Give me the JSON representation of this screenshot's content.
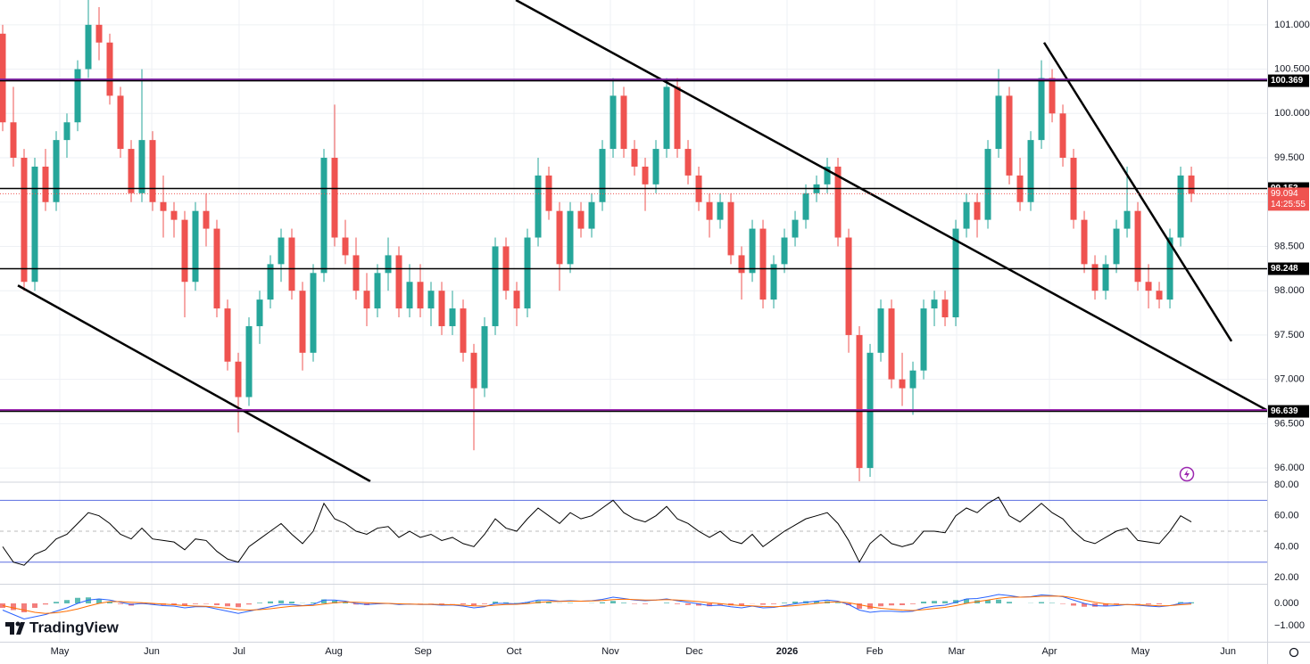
{
  "chart_data": {
    "type": "candlestick",
    "xlim": [
      -0.25,
      118.08
    ],
    "xticks": [
      {
        "value": 5.33,
        "label": "May"
      },
      {
        "value": 13.92,
        "label": "Jun"
      },
      {
        "value": 22.08,
        "label": "Jul"
      },
      {
        "value": 30.92,
        "label": "Aug"
      },
      {
        "value": 39.25,
        "label": "Sep"
      },
      {
        "value": 47.75,
        "label": "Oct"
      },
      {
        "value": 56.75,
        "label": "Nov"
      },
      {
        "value": 64.58,
        "label": "Dec"
      },
      {
        "value": 73.25,
        "label": "2026"
      },
      {
        "value": 81.42,
        "label": "Feb"
      },
      {
        "value": 89.08,
        "label": "Mar"
      },
      {
        "value": 97.75,
        "label": "Apr"
      },
      {
        "value": 106.25,
        "label": "May"
      },
      {
        "value": 114.42,
        "label": "Jun"
      }
    ],
    "ylim": [
      95.85,
      101.28
    ],
    "yticks": [
      {
        "value": 96,
        "label": "96.000"
      },
      {
        "value": 96.5,
        "label": "96.500"
      },
      {
        "value": 97,
        "label": "97.000"
      },
      {
        "value": 97.5,
        "label": "97.500"
      },
      {
        "value": 98,
        "label": "98.000"
      },
      {
        "value": 98.5,
        "label": "98.500"
      },
      {
        "value": 99,
        "label": "99.000"
      },
      {
        "value": 99.5,
        "label": "99.500"
      },
      {
        "value": 100,
        "label": "100.000"
      },
      {
        "value": 100.5,
        "label": "100.500"
      },
      {
        "value": 101,
        "label": "101.000"
      }
    ],
    "grid": true,
    "up_color": "#26a69a",
    "down_color": "#ef5350",
    "candles": [
      [
        100.9,
        101.0,
        99.8,
        99.9
      ],
      [
        99.9,
        100.3,
        99.4,
        99.5
      ],
      [
        99.5,
        99.6,
        98.0,
        98.1
      ],
      [
        98.1,
        99.5,
        98.0,
        99.4
      ],
      [
        99.4,
        99.6,
        98.9,
        99.0
      ],
      [
        99.0,
        99.8,
        98.9,
        99.7
      ],
      [
        99.7,
        100.0,
        99.5,
        99.9
      ],
      [
        99.9,
        100.6,
        99.8,
        100.5
      ],
      [
        100.5,
        101.3,
        100.4,
        101.0
      ],
      [
        101.0,
        101.2,
        100.6,
        100.8
      ],
      [
        100.8,
        100.9,
        100.1,
        100.2
      ],
      [
        100.2,
        100.3,
        99.5,
        99.6
      ],
      [
        99.6,
        99.7,
        99.0,
        99.1
      ],
      [
        99.1,
        100.5,
        99.0,
        99.7
      ],
      [
        99.7,
        99.8,
        98.9,
        99.0
      ],
      [
        99.0,
        99.3,
        98.6,
        98.9
      ],
      [
        98.9,
        99.0,
        98.6,
        98.8
      ],
      [
        98.8,
        98.9,
        97.7,
        98.1
      ],
      [
        98.1,
        99.0,
        98.0,
        98.9
      ],
      [
        98.9,
        99.1,
        98.5,
        98.7
      ],
      [
        98.7,
        98.8,
        97.7,
        97.8
      ],
      [
        97.8,
        97.9,
        97.1,
        97.2
      ],
      [
        97.2,
        97.3,
        96.4,
        96.8
      ],
      [
        96.8,
        97.7,
        96.7,
        97.6
      ],
      [
        97.6,
        98.0,
        97.4,
        97.9
      ],
      [
        97.9,
        98.4,
        97.8,
        98.3
      ],
      [
        98.3,
        98.7,
        98.1,
        98.6
      ],
      [
        98.6,
        98.7,
        97.9,
        98.0
      ],
      [
        98.0,
        98.1,
        97.1,
        97.3
      ],
      [
        97.3,
        98.3,
        97.2,
        98.2
      ],
      [
        98.2,
        99.6,
        98.1,
        99.5
      ],
      [
        99.5,
        100.1,
        98.5,
        98.6
      ],
      [
        98.6,
        98.8,
        98.3,
        98.4
      ],
      [
        98.4,
        98.6,
        97.9,
        98.0
      ],
      [
        98.0,
        98.2,
        97.6,
        97.8
      ],
      [
        97.8,
        98.3,
        97.7,
        98.2
      ],
      [
        98.2,
        98.6,
        98.0,
        98.4
      ],
      [
        98.4,
        98.5,
        97.7,
        97.8
      ],
      [
        97.8,
        98.3,
        97.7,
        98.1
      ],
      [
        98.1,
        98.3,
        97.7,
        97.8
      ],
      [
        97.8,
        98.1,
        97.6,
        98.0
      ],
      [
        98.0,
        98.1,
        97.5,
        97.6
      ],
      [
        97.6,
        98.0,
        97.5,
        97.8
      ],
      [
        97.8,
        97.9,
        97.2,
        97.3
      ],
      [
        97.3,
        97.4,
        96.2,
        96.9
      ],
      [
        96.9,
        97.7,
        96.8,
        97.6
      ],
      [
        97.6,
        98.6,
        97.5,
        98.5
      ],
      [
        98.5,
        98.6,
        97.9,
        98.0
      ],
      [
        98.0,
        98.1,
        97.6,
        97.8
      ],
      [
        97.8,
        98.7,
        97.7,
        98.6
      ],
      [
        98.6,
        99.5,
        98.5,
        99.3
      ],
      [
        99.3,
        99.4,
        98.8,
        98.9
      ],
      [
        98.9,
        99.0,
        98.0,
        98.3
      ],
      [
        98.3,
        99.0,
        98.2,
        98.9
      ],
      [
        98.9,
        99.0,
        98.6,
        98.7
      ],
      [
        98.7,
        99.1,
        98.6,
        99.0
      ],
      [
        99.0,
        99.7,
        98.9,
        99.6
      ],
      [
        99.6,
        100.4,
        99.5,
        100.2
      ],
      [
        100.2,
        100.3,
        99.5,
        99.6
      ],
      [
        99.6,
        99.7,
        99.3,
        99.4
      ],
      [
        99.4,
        99.5,
        98.9,
        99.2
      ],
      [
        99.2,
        99.7,
        99.1,
        99.6
      ],
      [
        99.6,
        100.4,
        99.5,
        100.3
      ],
      [
        100.3,
        100.4,
        99.5,
        99.6
      ],
      [
        99.6,
        99.7,
        99.2,
        99.3
      ],
      [
        99.3,
        99.4,
        98.9,
        99.0
      ],
      [
        99.0,
        99.1,
        98.6,
        98.8
      ],
      [
        98.8,
        99.1,
        98.7,
        99.0
      ],
      [
        99.0,
        99.1,
        98.3,
        98.4
      ],
      [
        98.4,
        98.5,
        97.9,
        98.2
      ],
      [
        98.2,
        98.8,
        98.1,
        98.7
      ],
      [
        98.7,
        98.8,
        97.8,
        97.9
      ],
      [
        97.9,
        98.4,
        97.8,
        98.3
      ],
      [
        98.3,
        98.7,
        98.2,
        98.6
      ],
      [
        98.6,
        98.9,
        98.5,
        98.8
      ],
      [
        98.8,
        99.2,
        98.7,
        99.1
      ],
      [
        99.1,
        99.3,
        99.0,
        99.2
      ],
      [
        99.2,
        99.5,
        99.1,
        99.4
      ],
      [
        99.4,
        99.5,
        98.5,
        98.6
      ],
      [
        98.6,
        98.7,
        97.3,
        97.5
      ],
      [
        97.5,
        97.6,
        95.85,
        96.0
      ],
      [
        96.0,
        97.4,
        95.9,
        97.3
      ],
      [
        97.3,
        97.9,
        97.2,
        97.8
      ],
      [
        97.8,
        97.9,
        96.9,
        97.0
      ],
      [
        97.0,
        97.3,
        96.7,
        96.9
      ],
      [
        96.9,
        97.2,
        96.6,
        97.1
      ],
      [
        97.1,
        97.9,
        97.0,
        97.8
      ],
      [
        97.8,
        98.0,
        97.6,
        97.9
      ],
      [
        97.9,
        98.0,
        97.6,
        97.7
      ],
      [
        97.7,
        98.8,
        97.6,
        98.7
      ],
      [
        98.7,
        99.1,
        98.6,
        99.0
      ],
      [
        99.0,
        99.1,
        98.6,
        98.8
      ],
      [
        98.8,
        99.7,
        98.7,
        99.6
      ],
      [
        99.6,
        100.5,
        99.5,
        100.2
      ],
      [
        100.2,
        100.3,
        99.2,
        99.3
      ],
      [
        99.3,
        99.5,
        98.9,
        99.0
      ],
      [
        99.0,
        99.8,
        98.9,
        99.7
      ],
      [
        99.7,
        100.6,
        99.6,
        100.4
      ],
      [
        100.4,
        100.5,
        99.9,
        100.0
      ],
      [
        100.0,
        100.1,
        99.4,
        99.5
      ],
      [
        99.5,
        99.6,
        98.7,
        98.8
      ],
      [
        98.8,
        98.9,
        98.2,
        98.3
      ],
      [
        98.3,
        98.4,
        97.9,
        98.0
      ],
      [
        98.0,
        98.4,
        97.9,
        98.3
      ],
      [
        98.3,
        98.8,
        98.2,
        98.7
      ],
      [
        98.7,
        99.4,
        98.6,
        98.9
      ],
      [
        98.9,
        99.0,
        98.0,
        98.1
      ],
      [
        98.1,
        98.3,
        97.8,
        98.0
      ],
      [
        98.0,
        98.1,
        97.8,
        97.9
      ],
      [
        97.9,
        98.7,
        97.8,
        98.6
      ],
      [
        98.6,
        99.4,
        98.5,
        99.3
      ],
      [
        99.3,
        99.4,
        99.0,
        99.094
      ]
    ],
    "levels": [
      {
        "value": 100.369,
        "color": "#000000",
        "accent": "#7b1fa2"
      },
      {
        "value": 99.153,
        "color": "#000000"
      },
      {
        "value": 98.248,
        "color": "#000000"
      },
      {
        "value": 96.639,
        "color": "#000000",
        "accent": "#9c27b0"
      }
    ],
    "current_price": 99.094,
    "countdown": "14:25:55",
    "trendlines": [
      {
        "x": [
          1.42,
          34.33
        ],
        "y": [
          98.06,
          95.85
        ]
      },
      {
        "x": [
          47.92,
          118.08
        ],
        "y": [
          101.28,
          96.65
        ]
      },
      {
        "x": [
          97.25,
          114.75
        ],
        "y": [
          100.8,
          97.43
        ]
      }
    ],
    "rsi": {
      "ylim": [
        16,
        81.14
      ],
      "yticks": [
        {
          "value": 80,
          "label": "80.00"
        },
        {
          "value": 60,
          "label": "60.00"
        },
        {
          "value": 40,
          "label": "40.00"
        },
        {
          "value": 20,
          "label": "20.00"
        }
      ],
      "bands": [
        70,
        30
      ],
      "mid": 50,
      "color": "#000000",
      "values": [
        40,
        30,
        28,
        35,
        38,
        45,
        48,
        55,
        62,
        60,
        55,
        48,
        45,
        52,
        45,
        44,
        43,
        38,
        45,
        44,
        37,
        32,
        30,
        40,
        45,
        50,
        55,
        48,
        42,
        50,
        68,
        58,
        55,
        50,
        48,
        52,
        53,
        46,
        50,
        46,
        48,
        44,
        46,
        42,
        40,
        48,
        58,
        52,
        50,
        58,
        65,
        60,
        55,
        62,
        58,
        60,
        65,
        70,
        62,
        58,
        56,
        60,
        66,
        58,
        55,
        50,
        46,
        50,
        44,
        42,
        48,
        40,
        45,
        50,
        54,
        58,
        60,
        62,
        55,
        44,
        30,
        42,
        48,
        42,
        40,
        42,
        50,
        50,
        49,
        60,
        65,
        62,
        68,
        72,
        60,
        56,
        62,
        68,
        62,
        58,
        50,
        44,
        42,
        46,
        50,
        52,
        44,
        43,
        42,
        50,
        60,
        56
      ]
    },
    "macd": {
      "ylim": [
        -1.72,
        0.84
      ],
      "yticks": [
        {
          "value": 0,
          "label": "0.000"
        },
        {
          "value": -1,
          "label": "−1.000"
        }
      ],
      "macd_color": "#2962ff",
      "signal_color": "#ff6d00",
      "macd": [
        -0.3,
        -0.5,
        -0.7,
        -0.6,
        -0.5,
        -0.35,
        -0.2,
        0.0,
        0.15,
        0.2,
        0.15,
        0.05,
        -0.05,
        0.0,
        -0.05,
        -0.1,
        -0.12,
        -0.2,
        -0.15,
        -0.15,
        -0.25,
        -0.35,
        -0.45,
        -0.35,
        -0.25,
        -0.15,
        -0.05,
        -0.05,
        -0.1,
        -0.05,
        0.15,
        0.15,
        0.1,
        0.0,
        -0.05,
        -0.02,
        0.0,
        -0.05,
        -0.03,
        -0.05,
        -0.05,
        -0.08,
        -0.07,
        -0.12,
        -0.2,
        -0.15,
        0.0,
        0.0,
        -0.02,
        0.05,
        0.15,
        0.15,
        0.1,
        0.12,
        0.1,
        0.12,
        0.18,
        0.28,
        0.22,
        0.15,
        0.12,
        0.15,
        0.2,
        0.12,
        0.05,
        -0.02,
        -0.1,
        -0.08,
        -0.15,
        -0.2,
        -0.12,
        -0.2,
        -0.18,
        -0.1,
        -0.02,
        0.05,
        0.1,
        0.15,
        0.1,
        -0.05,
        -0.3,
        -0.4,
        -0.35,
        -0.35,
        -0.38,
        -0.35,
        -0.2,
        -0.12,
        -0.08,
        0.05,
        0.2,
        0.22,
        0.3,
        0.4,
        0.35,
        0.28,
        0.3,
        0.38,
        0.35,
        0.3,
        0.15,
        0.0,
        -0.1,
        -0.12,
        -0.1,
        -0.05,
        -0.08,
        -0.12,
        -0.15,
        -0.1,
        0.0,
        0.02
      ],
      "signal": [
        -0.1,
        -0.2,
        -0.3,
        -0.4,
        -0.45,
        -0.42,
        -0.35,
        -0.25,
        -0.12,
        0.0,
        0.08,
        0.08,
        0.05,
        0.03,
        0.0,
        -0.03,
        -0.06,
        -0.1,
        -0.12,
        -0.13,
        -0.17,
        -0.22,
        -0.28,
        -0.3,
        -0.28,
        -0.24,
        -0.18,
        -0.13,
        -0.11,
        -0.09,
        -0.03,
        0.03,
        0.06,
        0.05,
        0.03,
        0.01,
        0.0,
        -0.02,
        -0.03,
        -0.04,
        -0.04,
        -0.05,
        -0.06,
        -0.08,
        -0.11,
        -0.12,
        -0.08,
        -0.05,
        -0.04,
        -0.01,
        0.04,
        0.08,
        0.09,
        0.1,
        0.1,
        0.11,
        0.13,
        0.17,
        0.19,
        0.17,
        0.15,
        0.15,
        0.17,
        0.15,
        0.12,
        0.08,
        0.03,
        -0.01,
        -0.06,
        -0.1,
        -0.11,
        -0.14,
        -0.15,
        -0.13,
        -0.1,
        -0.05,
        0.0,
        0.05,
        0.07,
        0.03,
        -0.06,
        -0.15,
        -0.22,
        -0.26,
        -0.3,
        -0.32,
        -0.28,
        -0.23,
        -0.18,
        -0.1,
        0.0,
        0.08,
        0.15,
        0.23,
        0.28,
        0.28,
        0.29,
        0.32,
        0.33,
        0.32,
        0.25,
        0.15,
        0.05,
        -0.02,
        -0.05,
        -0.05,
        -0.06,
        -0.08,
        -0.11,
        -0.1,
        -0.06,
        -0.03
      ],
      "histogram": [
        -0.2,
        -0.3,
        -0.4,
        -0.2,
        -0.05,
        0.07,
        0.15,
        0.25,
        0.27,
        0.2,
        0.07,
        -0.03,
        -0.1,
        -0.03,
        -0.05,
        -0.07,
        -0.06,
        -0.1,
        -0.03,
        -0.02,
        -0.08,
        -0.13,
        -0.17,
        -0.05,
        0.03,
        0.09,
        0.13,
        0.08,
        0.01,
        0.04,
        0.18,
        0.12,
        0.04,
        -0.05,
        -0.08,
        -0.03,
        0.0,
        -0.03,
        0.0,
        -0.01,
        -0.01,
        -0.03,
        -0.01,
        -0.04,
        -0.09,
        -0.03,
        0.08,
        0.05,
        0.02,
        0.06,
        0.11,
        0.07,
        0.01,
        0.02,
        0.0,
        0.01,
        0.05,
        0.11,
        0.03,
        -0.02,
        -0.03,
        0.0,
        0.03,
        -0.03,
        -0.07,
        -0.1,
        -0.13,
        -0.07,
        -0.09,
        -0.1,
        -0.01,
        -0.06,
        -0.03,
        0.03,
        0.08,
        0.1,
        0.1,
        0.1,
        0.03,
        -0.08,
        -0.24,
        -0.25,
        -0.13,
        -0.09,
        -0.08,
        -0.03,
        0.08,
        0.11,
        0.1,
        0.15,
        0.2,
        0.14,
        0.15,
        0.17,
        0.07,
        0.0,
        0.01,
        0.06,
        0.02,
        -0.02,
        -0.1,
        -0.15,
        -0.15,
        -0.1,
        -0.05,
        0.0,
        -0.02,
        -0.04,
        -0.04,
        0.0,
        0.06,
        0.05
      ]
    },
    "brand": "TradingView"
  }
}
